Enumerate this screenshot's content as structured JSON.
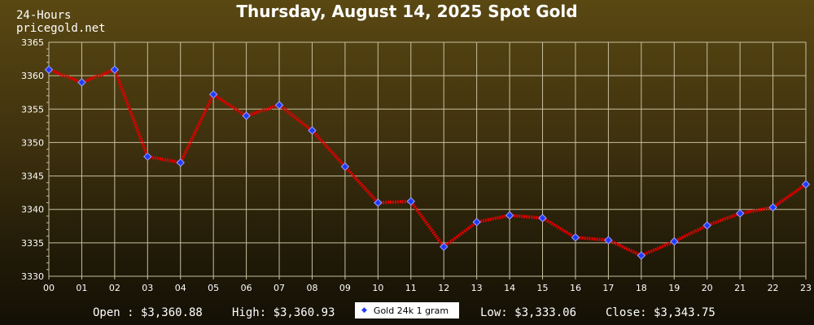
{
  "header": {
    "title": "Thursday, August 14, 2025 Spot Gold",
    "range_label": "24-Hours",
    "source_label": "pricegold.net"
  },
  "colors": {
    "line": "#e00000",
    "marker_fill": "#1e3cff",
    "marker_stroke": "#a0a0ff",
    "grid": "#c8c0a0",
    "text": "#ffffff"
  },
  "chart_data": {
    "type": "line",
    "title": "Thursday, August 14, 2025 Spot Gold",
    "categories": [
      "00",
      "01",
      "02",
      "03",
      "04",
      "05",
      "06",
      "07",
      "08",
      "09",
      "10",
      "11",
      "12",
      "13",
      "14",
      "15",
      "16",
      "17",
      "18",
      "19",
      "20",
      "21",
      "22",
      "23"
    ],
    "series": [
      {
        "name": "Gold 24k 1 gram",
        "values": [
          3360.9,
          3359.0,
          3360.9,
          3347.9,
          3347.0,
          3357.2,
          3354.0,
          3355.6,
          3351.8,
          3346.4,
          3341.0,
          3341.2,
          3334.4,
          3338.1,
          3339.1,
          3338.7,
          3335.8,
          3335.4,
          3333.1,
          3335.2,
          3337.6,
          3339.4,
          3340.3,
          3343.75
        ]
      }
    ],
    "ylim": [
      3330,
      3365
    ],
    "yticks": [
      3330,
      3335,
      3340,
      3345,
      3350,
      3355,
      3360,
      3365
    ],
    "grid": true,
    "legend": "bottom-center"
  },
  "stats": {
    "open": "Open : $3,360.88",
    "high": "High: $3,360.93",
    "low": "Low: $3,333.06",
    "close": "Close: $3,343.75"
  },
  "legend": {
    "label": "Gold 24k 1 gram"
  }
}
